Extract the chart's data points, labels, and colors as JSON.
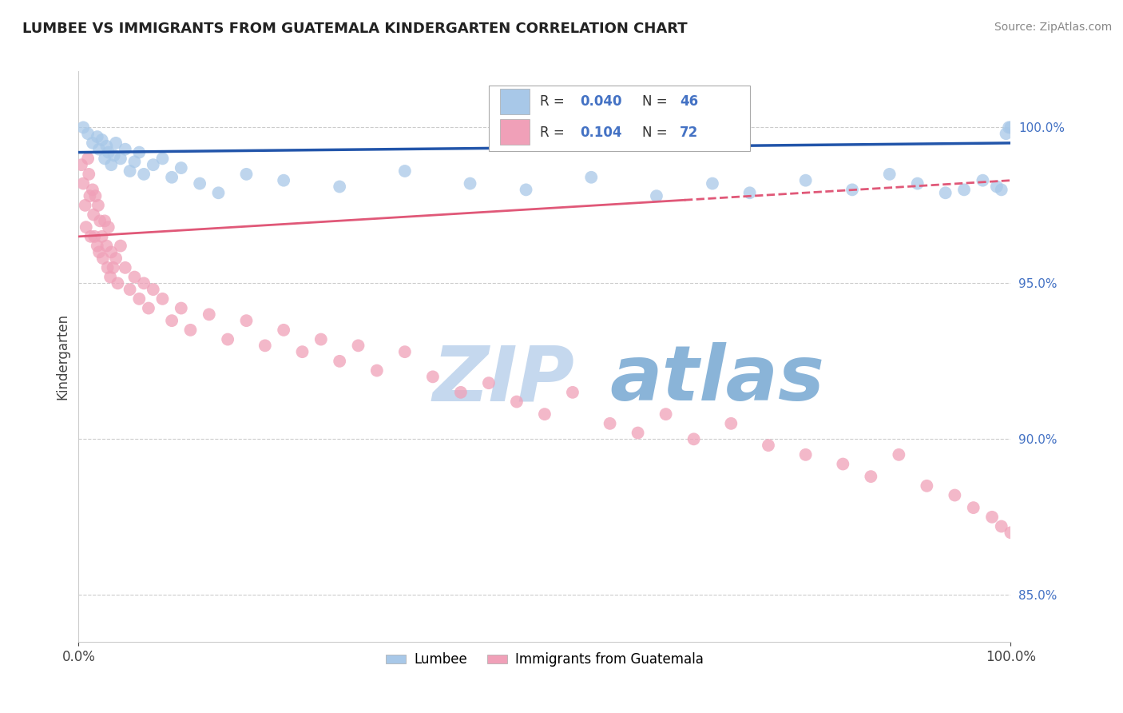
{
  "title": "LUMBEE VS IMMIGRANTS FROM GUATEMALA KINDERGARTEN CORRELATION CHART",
  "source": "Source: ZipAtlas.com",
  "ylabel": "Kindergarten",
  "yticks": [
    85.0,
    90.0,
    95.0,
    100.0
  ],
  "ytick_labels": [
    "85.0%",
    "90.0%",
    "95.0%",
    "100.0%"
  ],
  "xlim": [
    0.0,
    100.0
  ],
  "ylim": [
    83.5,
    101.8
  ],
  "blue_R": "0.040",
  "blue_N": "46",
  "pink_R": "0.104",
  "pink_N": "72",
  "blue_color": "#a8c8e8",
  "pink_color": "#f0a0b8",
  "blue_line_color": "#2255aa",
  "pink_line_color": "#e05878",
  "watermark_zip": "ZIP",
  "watermark_atlas": "atlas",
  "watermark_color_zip": "#c5d8ee",
  "watermark_color_atlas": "#8ab4d8",
  "blue_scatter_x": [
    0.5,
    1.0,
    1.5,
    2.0,
    2.2,
    2.5,
    2.8,
    3.0,
    3.2,
    3.5,
    3.8,
    4.0,
    4.5,
    5.0,
    5.5,
    6.0,
    6.5,
    7.0,
    8.0,
    9.0,
    10.0,
    11.0,
    13.0,
    15.0,
    18.0,
    22.0,
    28.0,
    35.0,
    42.0,
    48.0,
    55.0,
    62.0,
    68.0,
    72.0,
    78.0,
    83.0,
    87.0,
    90.0,
    93.0,
    95.0,
    97.0,
    98.5,
    99.0,
    99.5,
    99.8,
    100.0
  ],
  "blue_scatter_y": [
    100.0,
    99.8,
    99.5,
    99.7,
    99.3,
    99.6,
    99.0,
    99.4,
    99.2,
    98.8,
    99.1,
    99.5,
    99.0,
    99.3,
    98.6,
    98.9,
    99.2,
    98.5,
    98.8,
    99.0,
    98.4,
    98.7,
    98.2,
    97.9,
    98.5,
    98.3,
    98.1,
    98.6,
    98.2,
    98.0,
    98.4,
    97.8,
    98.2,
    97.9,
    98.3,
    98.0,
    98.5,
    98.2,
    97.9,
    98.0,
    98.3,
    98.1,
    98.0,
    99.8,
    100.0,
    100.0
  ],
  "pink_scatter_x": [
    0.3,
    0.5,
    0.7,
    0.8,
    1.0,
    1.1,
    1.2,
    1.3,
    1.5,
    1.6,
    1.7,
    1.8,
    2.0,
    2.1,
    2.2,
    2.3,
    2.5,
    2.6,
    2.8,
    3.0,
    3.1,
    3.2,
    3.4,
    3.5,
    3.7,
    4.0,
    4.2,
    4.5,
    5.0,
    5.5,
    6.0,
    6.5,
    7.0,
    7.5,
    8.0,
    9.0,
    10.0,
    11.0,
    12.0,
    14.0,
    16.0,
    18.0,
    20.0,
    22.0,
    24.0,
    26.0,
    28.0,
    30.0,
    32.0,
    35.0,
    38.0,
    41.0,
    44.0,
    47.0,
    50.0,
    53.0,
    57.0,
    60.0,
    63.0,
    66.0,
    70.0,
    74.0,
    78.0,
    82.0,
    85.0,
    88.0,
    91.0,
    94.0,
    96.0,
    98.0,
    99.0,
    100.0
  ],
  "pink_scatter_y": [
    98.8,
    98.2,
    97.5,
    96.8,
    99.0,
    98.5,
    97.8,
    96.5,
    98.0,
    97.2,
    96.5,
    97.8,
    96.2,
    97.5,
    96.0,
    97.0,
    96.5,
    95.8,
    97.0,
    96.2,
    95.5,
    96.8,
    95.2,
    96.0,
    95.5,
    95.8,
    95.0,
    96.2,
    95.5,
    94.8,
    95.2,
    94.5,
    95.0,
    94.2,
    94.8,
    94.5,
    93.8,
    94.2,
    93.5,
    94.0,
    93.2,
    93.8,
    93.0,
    93.5,
    92.8,
    93.2,
    92.5,
    93.0,
    92.2,
    92.8,
    92.0,
    91.5,
    91.8,
    91.2,
    90.8,
    91.5,
    90.5,
    90.2,
    90.8,
    90.0,
    90.5,
    89.8,
    89.5,
    89.2,
    88.8,
    89.5,
    88.5,
    88.2,
    87.8,
    87.5,
    87.2,
    87.0
  ],
  "pink_solid_end_x": 65.0
}
